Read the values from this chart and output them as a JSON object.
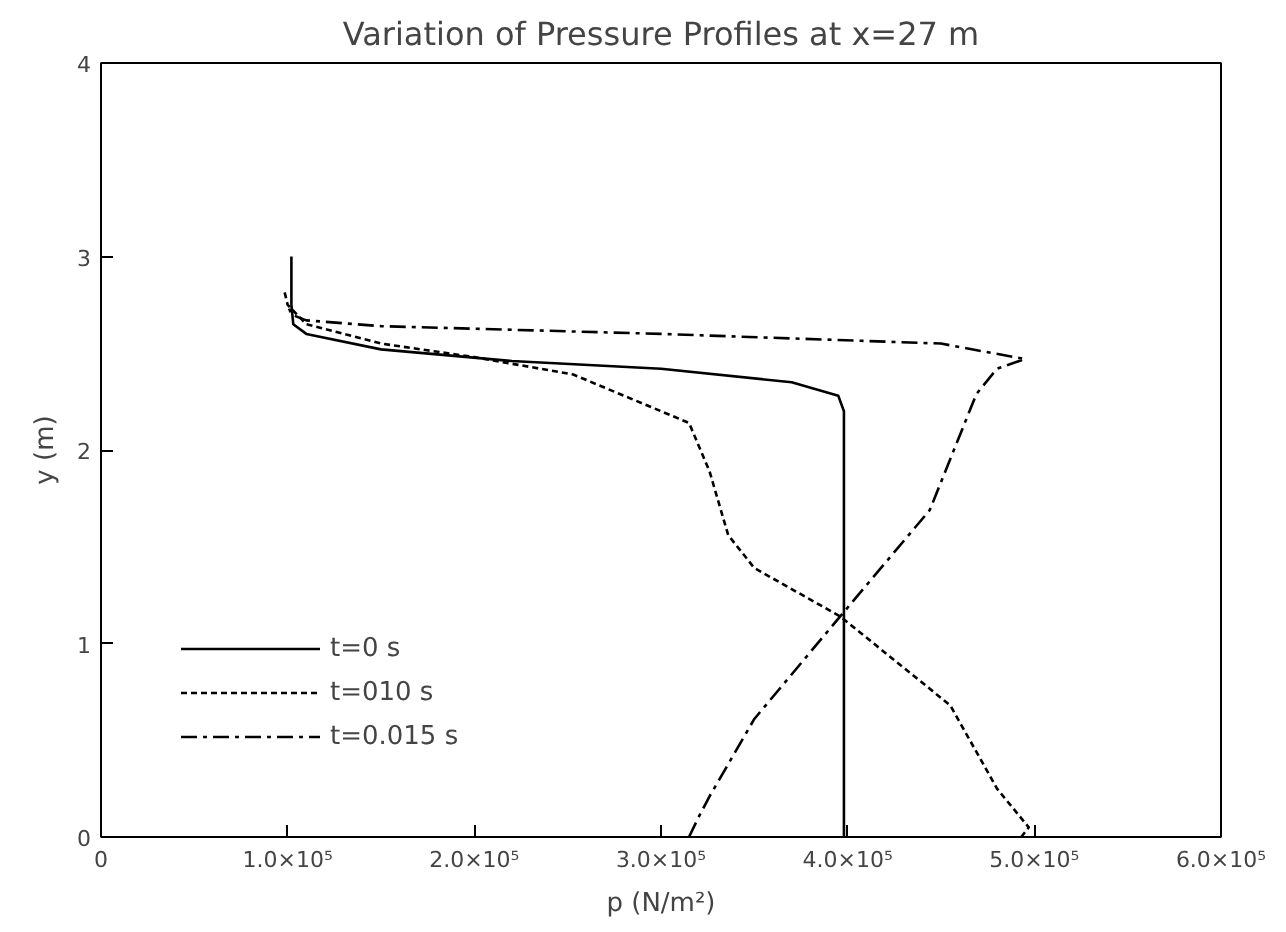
{
  "chart_data": {
    "type": "line",
    "title": "Variation of Pressure Profiles at x=27 m",
    "xlabel": "p (N/m²)",
    "ylabel": "y (m)",
    "xlim": [
      0,
      600000
    ],
    "ylim": [
      0,
      4
    ],
    "xticks": [
      0,
      {
        "value": 100000,
        "label": "1.0×10⁵"
      },
      {
        "value": 200000,
        "label": "2.0×10⁵"
      },
      {
        "value": 300000,
        "label": "3.0×10⁵"
      },
      {
        "value": 400000,
        "label": "4.0×10⁵"
      },
      {
        "value": 500000,
        "label": "5.0×10⁵"
      },
      {
        "value": 600000,
        "label": "6.0×10⁵"
      }
    ],
    "yticks": [
      0,
      1,
      2,
      3,
      4
    ],
    "grid": false,
    "legend": "bottom left",
    "marker": "none",
    "series": [
      {
        "name": "t=0 s",
        "color": "#000000",
        "line_style": "solid",
        "x": [
          398000,
          398000,
          395000,
          370000,
          300000,
          220000,
          150000,
          110000,
          103000,
          102000,
          102000
        ],
        "values": [
          0,
          2.2,
          2.28,
          2.35,
          2.42,
          2.46,
          2.52,
          2.6,
          2.65,
          2.75,
          3.0
        ]
      },
      {
        "name": "t=010 s",
        "color": "#000000",
        "line_style": "dashed",
        "x": [
          493000,
          497000,
          480000,
          455000,
          396000,
          350000,
          336000,
          326000,
          315000,
          253000,
          200000,
          150000,
          110000,
          100000,
          98000
        ],
        "values": [
          0,
          0.05,
          0.25,
          0.68,
          1.14,
          1.39,
          1.56,
          1.89,
          2.14,
          2.39,
          2.48,
          2.55,
          2.65,
          2.75,
          2.83
        ]
      },
      {
        "name": "t=0.015 s",
        "color": "#000000",
        "line_style": "dashdot",
        "x": [
          315000,
          320000,
          326000,
          350000,
          396000,
          444000,
          469000,
          480000,
          495000,
          450000,
          300000,
          150000,
          110000,
          102000,
          100000
        ],
        "values": [
          0,
          0.1,
          0.21,
          0.61,
          1.14,
          1.69,
          2.29,
          2.42,
          2.47,
          2.55,
          2.6,
          2.64,
          2.67,
          2.7,
          2.75
        ]
      }
    ]
  }
}
